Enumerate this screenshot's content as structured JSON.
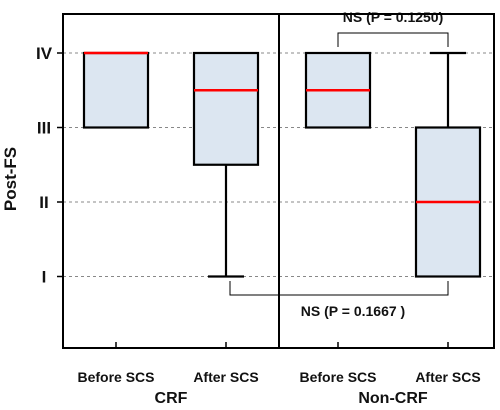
{
  "chart_data": {
    "type": "box",
    "ylabel": "Post-FS",
    "y_tick_labels": [
      "I",
      "II",
      "III",
      "IV"
    ],
    "y_tick_values": [
      1,
      2,
      3,
      4
    ],
    "ylim": [
      0,
      4.5
    ],
    "grid": true,
    "groups": [
      {
        "label": "CRF",
        "boxes": [
          {
            "label": "Before SCS",
            "whisker_low": 3,
            "q1": 3,
            "median": 4,
            "q3": 4,
            "whisker_high": 4
          },
          {
            "label": "After SCS",
            "whisker_low": 1,
            "q1": 2.5,
            "median": 3.5,
            "q3": 4,
            "whisker_high": 4
          }
        ]
      },
      {
        "label": "Non-CRF",
        "boxes": [
          {
            "label": "Before SCS",
            "whisker_low": 3,
            "q1": 3,
            "median": 3.5,
            "q3": 4,
            "whisker_high": 4
          },
          {
            "label": "After SCS",
            "whisker_low": 1,
            "q1": 1,
            "median": 2,
            "q3": 3,
            "whisker_high": 4
          }
        ]
      }
    ],
    "annotations": [
      {
        "text": "NS (P = 0.1250)",
        "between": [
          [
            1,
            0
          ],
          [
            1,
            1
          ]
        ],
        "position": "top"
      },
      {
        "text": "NS (P = 0.1667 )",
        "between": [
          [
            0,
            1
          ],
          [
            1,
            1
          ]
        ],
        "position": "bottom"
      }
    ]
  }
}
